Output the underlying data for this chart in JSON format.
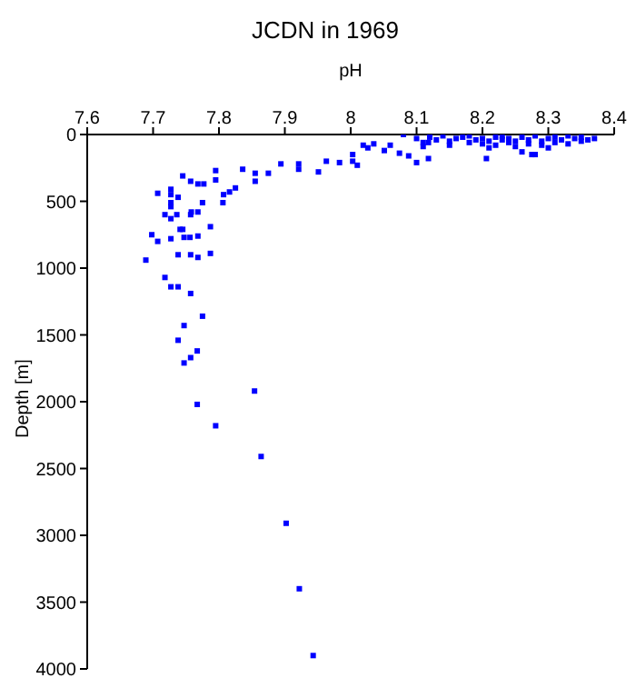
{
  "chart_data": {
    "type": "scatter",
    "title": "JCDN in 1969",
    "xlabel": "pH",
    "ylabel": "Depth [m]",
    "x": [
      8.08,
      8.118,
      8.118,
      8.206,
      8.275,
      8.019,
      8.026,
      8.035,
      8.051,
      8.06,
      8.074,
      8.088,
      8.1,
      8.003,
      8.003,
      8.01,
      7.983,
      7.963,
      7.951,
      7.921,
      7.921,
      7.894,
      7.875,
      7.855,
      7.855,
      7.836,
      7.825,
      7.816,
      7.807,
      7.806,
      7.795,
      7.795,
      7.777,
      7.768,
      7.757,
      7.745,
      7.775,
      7.768,
      7.758,
      7.757,
      7.787,
      7.768,
      7.756,
      7.747,
      7.745,
      7.741,
      7.736,
      7.738,
      7.727,
      7.727,
      7.727,
      7.727,
      7.727,
      7.727,
      7.718,
      7.707,
      7.698,
      7.707,
      7.689,
      7.738,
      7.757,
      7.768,
      7.787,
      7.718,
      7.727,
      7.738,
      7.757,
      7.747,
      7.775,
      7.738,
      7.767,
      7.757,
      7.747,
      7.854,
      7.767,
      7.795,
      7.864,
      7.902,
      7.922,
      7.943,
      8.1,
      8.11,
      8.11,
      8.12,
      8.13,
      8.14,
      8.15,
      8.15,
      8.16,
      8.17,
      8.18,
      8.18,
      8.19,
      8.2,
      8.2,
      8.21,
      8.21,
      8.22,
      8.22,
      8.23,
      8.23,
      8.24,
      8.24,
      8.25,
      8.25,
      8.26,
      8.26,
      8.27,
      8.27,
      8.28,
      8.28,
      8.29,
      8.29,
      8.3,
      8.3,
      8.31,
      8.31,
      8.32,
      8.33,
      8.33,
      8.34,
      8.35,
      8.35,
      8.36,
      8.37
    ],
    "values": [
      0,
      60,
      180,
      180,
      150,
      80,
      100,
      70,
      120,
      80,
      140,
      160,
      210,
      150,
      200,
      230,
      210,
      200,
      280,
      220,
      260,
      220,
      290,
      290,
      350,
      260,
      400,
      430,
      450,
      510,
      270,
      340,
      370,
      370,
      350,
      310,
      510,
      580,
      580,
      600,
      690,
      760,
      770,
      770,
      710,
      710,
      600,
      470,
      410,
      450,
      510,
      540,
      630,
      780,
      600,
      440,
      750,
      800,
      940,
      900,
      900,
      920,
      890,
      1070,
      1140,
      1140,
      1190,
      1430,
      1360,
      1540,
      1620,
      1670,
      1710,
      1920,
      2020,
      2180,
      2410,
      2910,
      3400,
      3900,
      30,
      60,
      90,
      20,
      40,
      10,
      50,
      80,
      30,
      20,
      60,
      10,
      40,
      30,
      70,
      100,
      50,
      20,
      80,
      40,
      10,
      60,
      30,
      50,
      90,
      20,
      130,
      70,
      40,
      10,
      150,
      50,
      80,
      30,
      100,
      60,
      20,
      40,
      10,
      70,
      30,
      50,
      20,
      40,
      30
    ],
    "color": "#0000ff",
    "marker": "square",
    "xlim": [
      7.6,
      8.4
    ],
    "xticks": [
      7.6,
      7.7,
      7.8,
      7.9,
      8,
      8.1,
      8.2,
      8.3,
      8.4
    ],
    "ylim": [
      4000,
      0
    ],
    "yticks": [
      0,
      500,
      1000,
      1500,
      2000,
      2500,
      3000,
      3500,
      4000
    ]
  }
}
